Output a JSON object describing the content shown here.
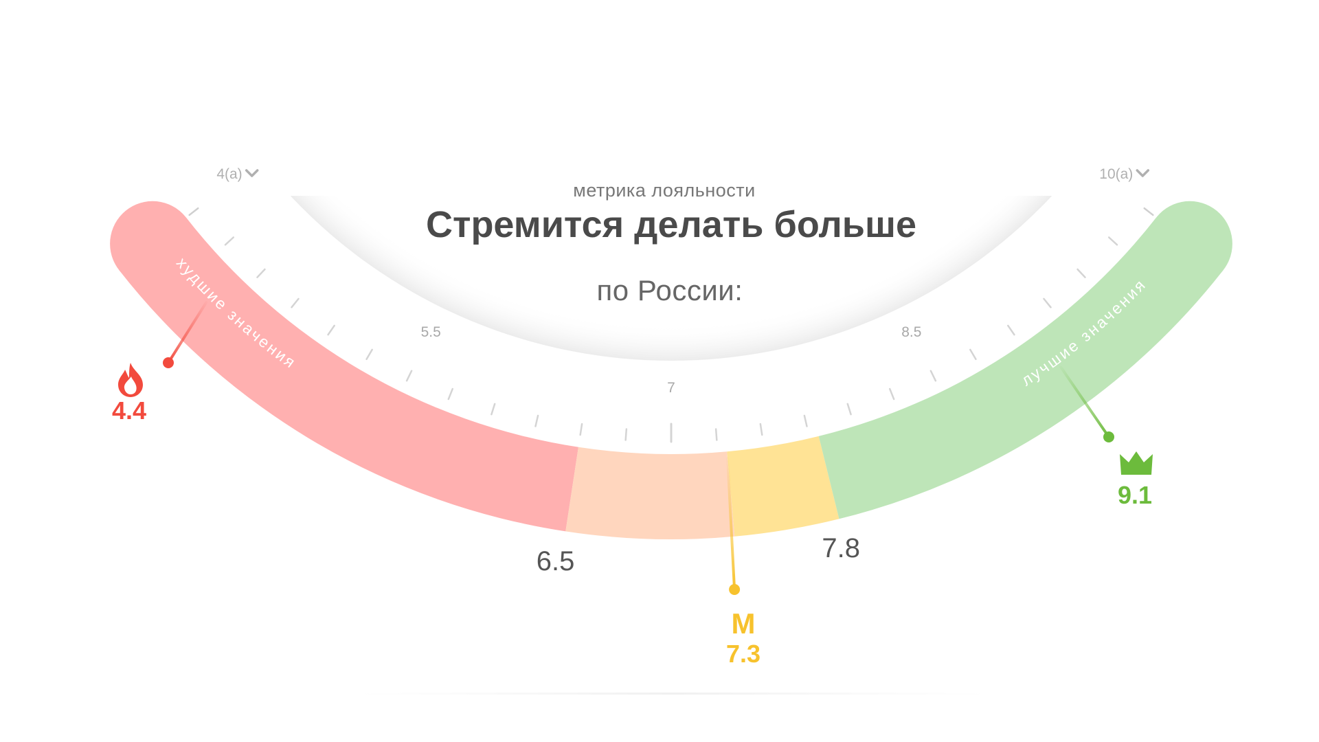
{
  "header": {
    "metric_label": "метрика лояльности",
    "title": "Стремится делать больше",
    "scope": "по России:"
  },
  "chart_data": {
    "type": "gauge",
    "range": [
      4,
      10
    ],
    "range_labels": [
      "4(а)",
      "10(а)"
    ],
    "tick_labels": [
      {
        "value": 5.5,
        "label": "5.5"
      },
      {
        "value": 7,
        "label": "7"
      },
      {
        "value": 8.5,
        "label": "8.5"
      }
    ],
    "zones": [
      {
        "from": 4.0,
        "to": 6.5,
        "color": "#ffb0b0",
        "label": "худшие значения"
      },
      {
        "from": 6.5,
        "to": 7.3,
        "color": "#ffd6be",
        "label": ""
      },
      {
        "from": 7.3,
        "to": 7.8,
        "color": "#ffe395",
        "label": ""
      },
      {
        "from": 7.8,
        "to": 10.0,
        "color": "#bee5b8",
        "label": "лучшие значения"
      }
    ],
    "thresholds": [
      {
        "value": 6.5,
        "label": "6.5"
      },
      {
        "value": 7.8,
        "label": "7.8"
      }
    ],
    "markers": [
      {
        "value": 4.4,
        "label": "4.4",
        "icon": "flame-icon",
        "color": "#f24a3d",
        "name": "worst"
      },
      {
        "value": 7.3,
        "label": "7.3",
        "letter": "M",
        "color": "#f7c22d",
        "name": "median"
      },
      {
        "value": 9.1,
        "label": "9.1",
        "icon": "crown-icon",
        "color": "#6cbb3c",
        "name": "best"
      }
    ]
  }
}
